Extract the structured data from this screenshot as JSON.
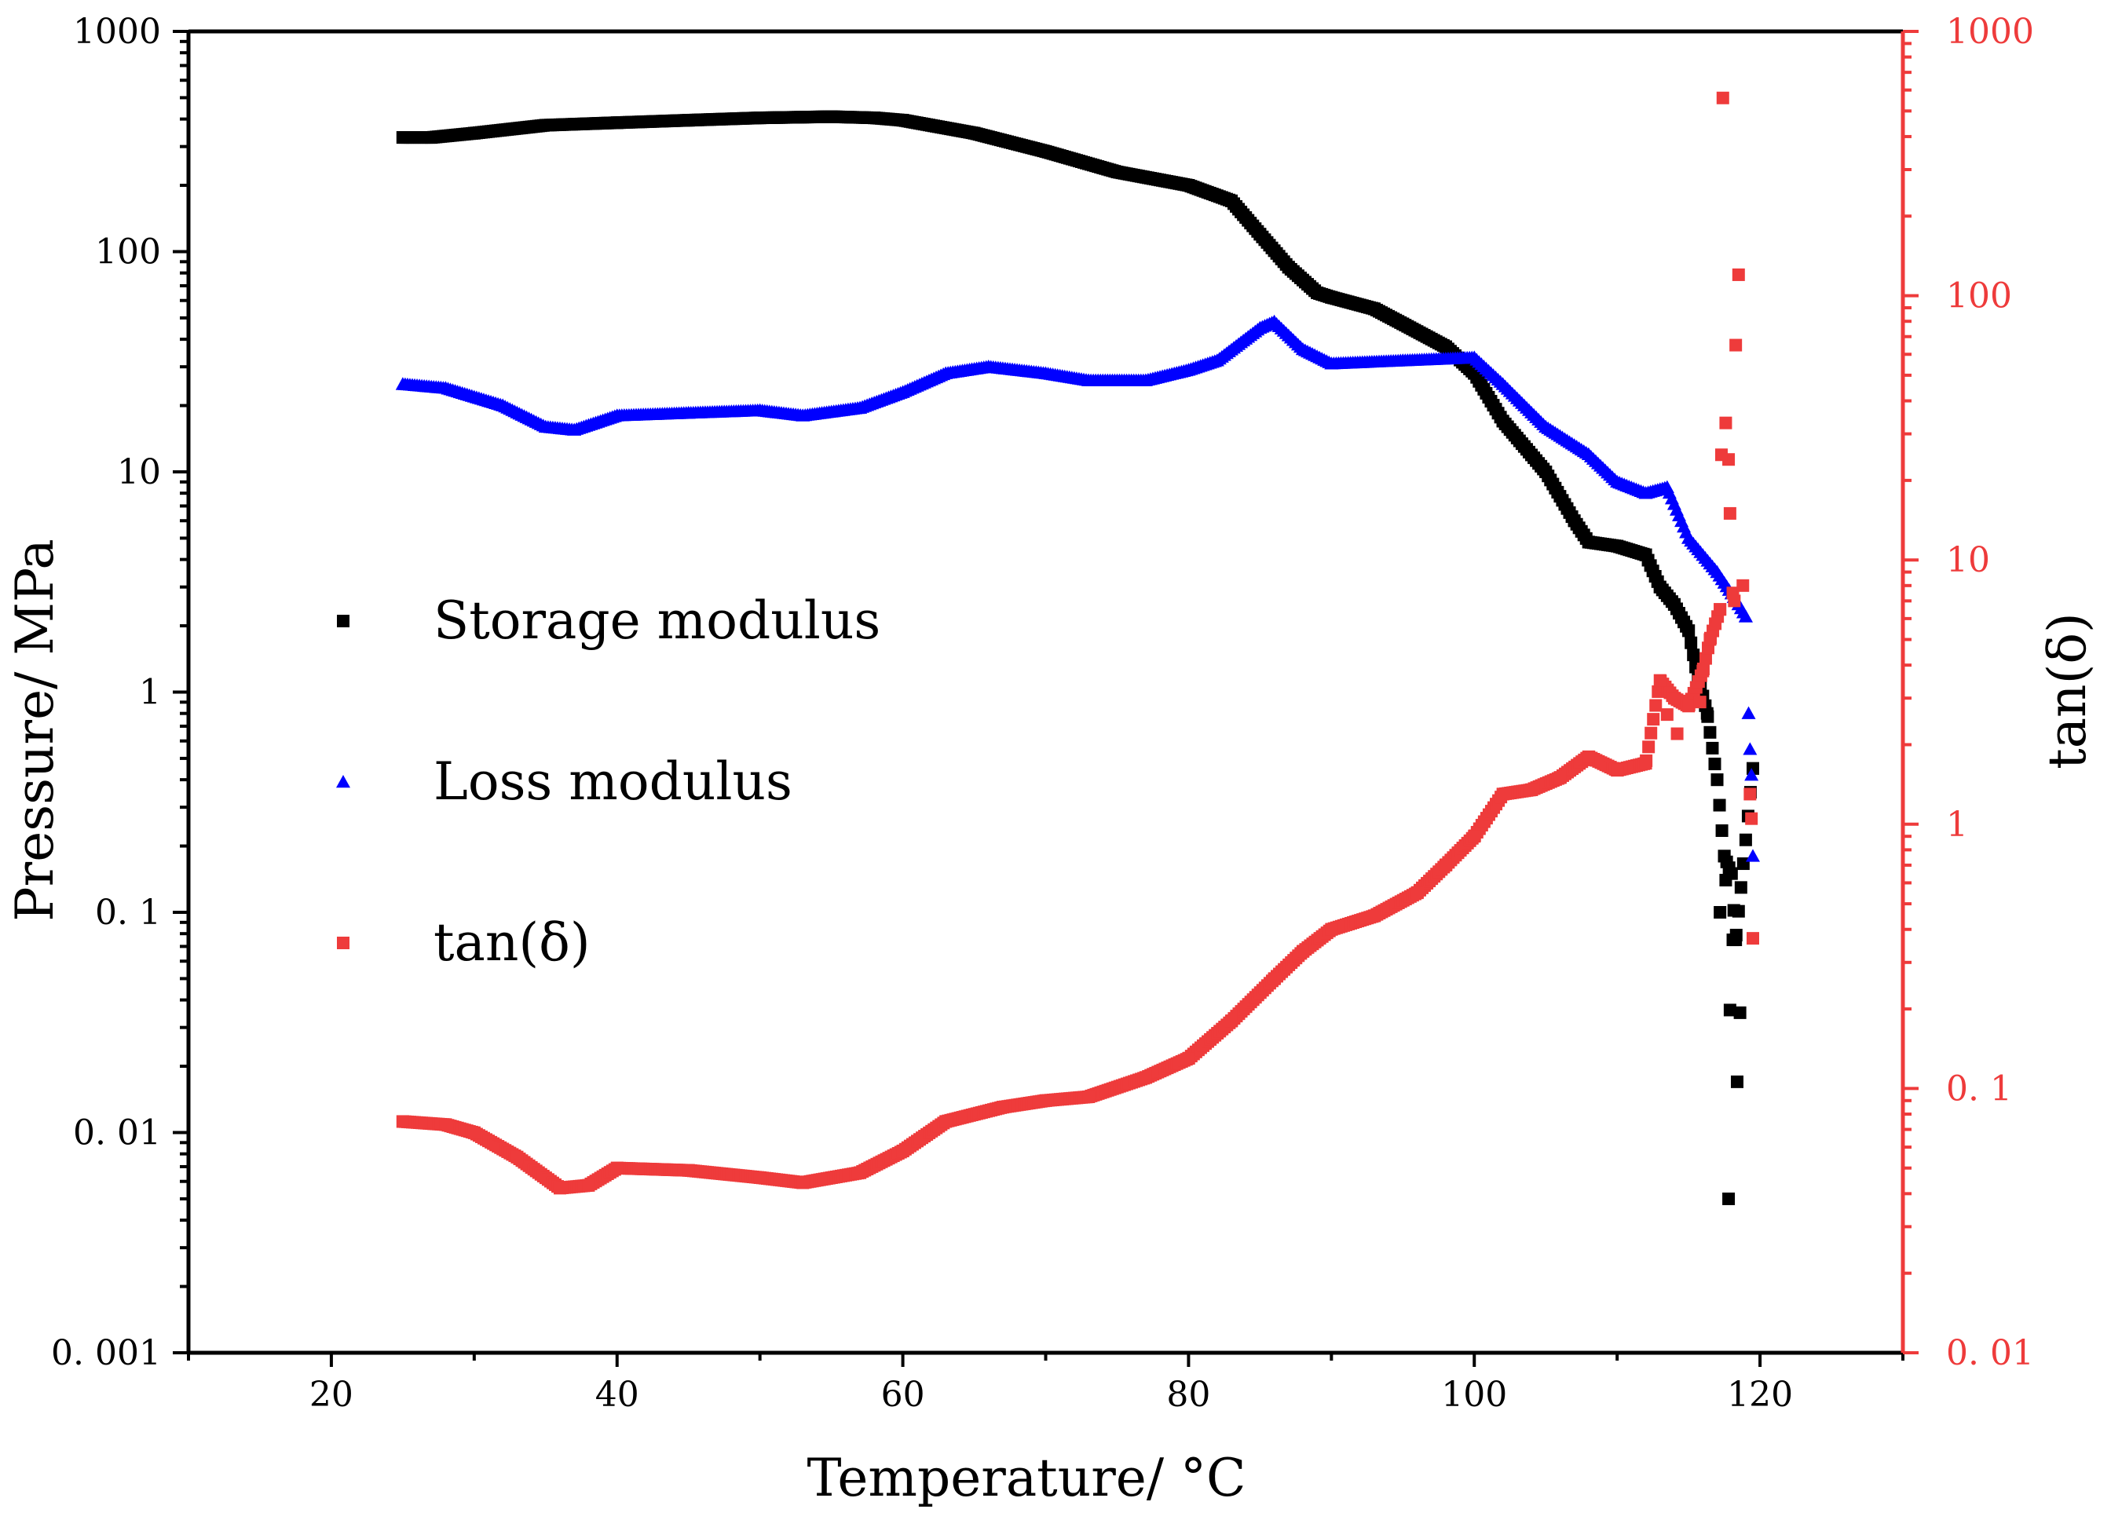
{
  "chart_data": {
    "type": "scatter",
    "xlabel": "Temperature/ °C",
    "ylabel_left": "Pressure/ MPa",
    "ylabel_right": "tan(δ)",
    "xlim": [
      10,
      130
    ],
    "ylim_left": [
      0.001,
      1000
    ],
    "ylim_right": [
      0.01,
      1000
    ],
    "yscale": "log",
    "x_ticks": [
      20,
      40,
      60,
      80,
      100,
      120
    ],
    "x_tick_labels": [
      "20",
      "40",
      "60",
      "80",
      "100",
      "120"
    ],
    "y_left_ticks": [
      0.001,
      0.01,
      0.1,
      1,
      10,
      100,
      1000
    ],
    "y_left_tick_labels": [
      "0. 001",
      "0. 01",
      "0. 1",
      "1",
      "10",
      "100",
      "1000"
    ],
    "y_right_ticks": [
      0.01,
      0.1,
      1,
      10,
      100,
      1000
    ],
    "y_right_tick_labels": [
      "0. 01",
      "0. 1",
      "1",
      "10",
      "100",
      "1000"
    ],
    "legend_position": "center-left",
    "legend": [
      {
        "label": "Storage modulus",
        "marker": "square",
        "color": "#000000"
      },
      {
        "label": "Loss modulus",
        "marker": "triangle",
        "color": "#0000ff"
      },
      {
        "label": "tan(δ)",
        "marker": "square",
        "color": "#ee3b3b"
      }
    ],
    "series": [
      {
        "name": "Storage modulus",
        "axis": "left",
        "color": "#000000",
        "marker": "square",
        "x": [
          25,
          27,
          30,
          35,
          40,
          45,
          50,
          55,
          58,
          60,
          65,
          70,
          75,
          80,
          83,
          85,
          87,
          89,
          90,
          93,
          95,
          98,
          100,
          102,
          105,
          107,
          108,
          110,
          112,
          113,
          114,
          115,
          115.5,
          116.3,
          117,
          117.5,
          118,
          118.3,
          119.5
        ],
        "values": [
          330,
          330,
          345,
          375,
          385,
          395,
          405,
          410,
          405,
          395,
          345,
          285,
          230,
          200,
          170,
          120,
          85,
          65,
          62,
          55,
          47,
          37,
          28,
          17,
          10,
          6,
          4.8,
          4.6,
          4.2,
          3,
          2.5,
          1.9,
          1.3,
          0.8,
          0.4,
          0.18,
          0.15,
          0.075,
          0.45
        ]
      },
      {
        "name": "Storage modulus (scatter)",
        "axis": "left",
        "color": "#000000",
        "marker": "square",
        "x": [
          117.2,
          117.6,
          117.9,
          118.1,
          118.4,
          117.8,
          118.6
        ],
        "values": [
          0.1,
          0.14,
          0.036,
          0.075,
          0.017,
          0.005,
          0.035
        ]
      },
      {
        "name": "Loss modulus",
        "axis": "left",
        "color": "#0000ff",
        "marker": "triangle",
        "x": [
          25,
          28,
          32,
          35,
          37,
          40,
          45,
          50,
          53,
          57,
          60,
          63,
          66,
          70,
          73,
          77,
          80,
          82,
          85,
          86,
          88,
          90,
          95,
          100,
          102,
          105,
          108,
          110,
          112,
          113.5,
          115,
          117,
          118.5,
          119
        ],
        "values": [
          25,
          24,
          20,
          16,
          15.5,
          18,
          18.5,
          19,
          18,
          19.5,
          23,
          28,
          30,
          28,
          26,
          26,
          29,
          32,
          45,
          48,
          36,
          31,
          32,
          33,
          25,
          16,
          12,
          9,
          8,
          8.5,
          5,
          3.5,
          2.5,
          2.2
        ]
      },
      {
        "name": "Loss modulus (scatter)",
        "axis": "left",
        "color": "#0000ff",
        "marker": "triangle",
        "x": [
          119.2,
          119.3,
          119.4,
          119.5
        ],
        "values": [
          0.8,
          0.55,
          0.42,
          0.18
        ]
      },
      {
        "name": "tan(δ)",
        "axis": "right",
        "color": "#ee3b3b",
        "marker": "square",
        "x": [
          25,
          28,
          30,
          33,
          36,
          38,
          40,
          45,
          50,
          53,
          57,
          60,
          63,
          67,
          70,
          73,
          77,
          80,
          83,
          86,
          88,
          90,
          93,
          96,
          98,
          100,
          102,
          104,
          106,
          108,
          110,
          112,
          113,
          114,
          115,
          116,
          116.5,
          117.2
        ],
        "values": [
          0.075,
          0.073,
          0.068,
          0.055,
          0.042,
          0.043,
          0.05,
          0.049,
          0.046,
          0.044,
          0.048,
          0.058,
          0.075,
          0.085,
          0.09,
          0.093,
          0.11,
          0.13,
          0.18,
          0.26,
          0.33,
          0.4,
          0.45,
          0.55,
          0.7,
          0.9,
          1.3,
          1.35,
          1.5,
          1.8,
          1.6,
          1.7,
          3.5,
          3,
          2.8,
          3.8,
          5,
          6.5
        ]
      },
      {
        "name": "tan(δ) (scatter)",
        "axis": "right",
        "color": "#ee3b3b",
        "marker": "square",
        "x": [
          117.4,
          117.6,
          117.8,
          117.9,
          118.1,
          118.3,
          118.5,
          118.8,
          119.3,
          119.4,
          119.5,
          117.3,
          118.2,
          113.5,
          114.2,
          115.8
        ],
        "values": [
          560,
          33,
          24,
          15,
          7.5,
          65,
          120,
          8,
          1.3,
          1.05,
          0.37,
          25,
          7,
          2.6,
          2.2,
          2.9
        ]
      }
    ]
  }
}
